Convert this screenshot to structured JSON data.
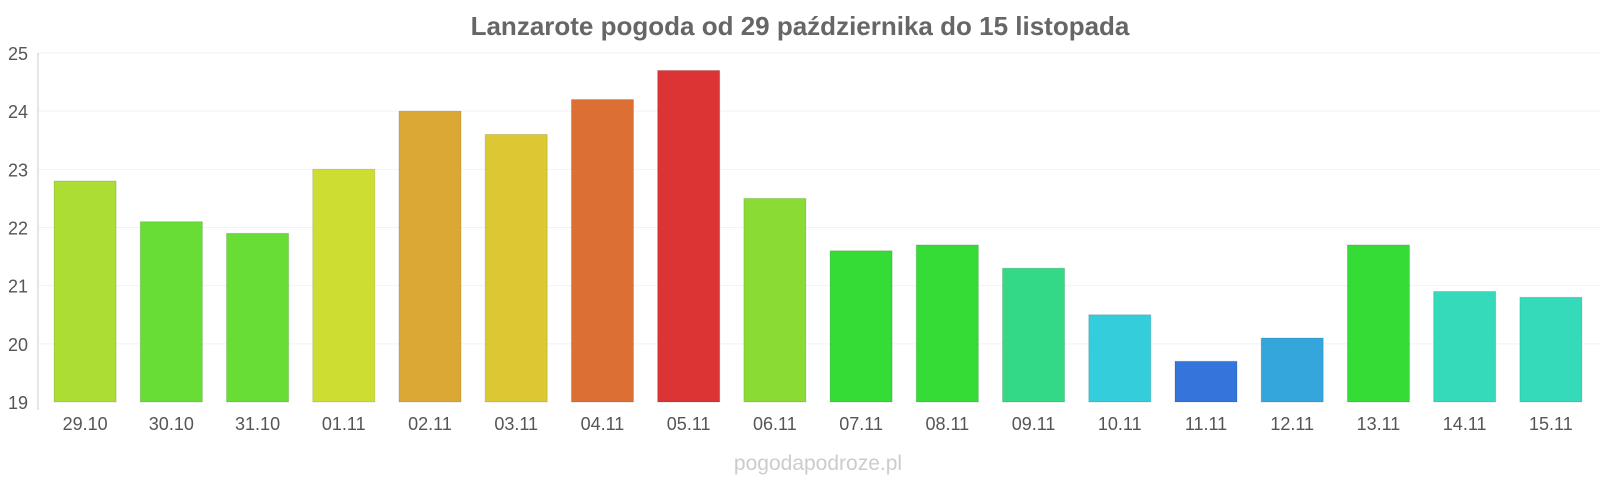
{
  "chart_data": {
    "type": "bar",
    "title": "Lanzarote pogoda od 29 października do 15 listopada",
    "xlabel": "",
    "ylabel": "",
    "ylim": [
      19,
      25
    ],
    "yticks": [
      "19",
      "20",
      "21",
      "22",
      "23",
      "24",
      "25"
    ],
    "grid": true,
    "legend": "none",
    "categories": [
      "29.10",
      "30.10",
      "31.10",
      "01.11",
      "02.11",
      "03.11",
      "04.11",
      "05.11",
      "06.11",
      "07.11",
      "08.11",
      "09.11",
      "10.11",
      "11.11",
      "12.11",
      "13.11",
      "14.11",
      "15.11"
    ],
    "values": [
      22.8,
      22.1,
      21.9,
      23.0,
      24.0,
      23.6,
      24.2,
      24.7,
      22.5,
      21.6,
      21.7,
      21.3,
      20.5,
      19.7,
      20.1,
      21.7,
      20.9,
      20.8
    ],
    "colors": [
      "#abdd32",
      "#67dd36",
      "#67dd36",
      "#cddd32",
      "#dca835",
      "#dbc832",
      "#dc6f34",
      "#dc3434",
      "#8adc34",
      "#34dc35",
      "#34dc35",
      "#34d985",
      "#34cddc",
      "#3475dc",
      "#34a6dc",
      "#34dc35",
      "#34dab9",
      "#34dab9"
    ]
  },
  "watermark": "pogodapodroze.pl"
}
